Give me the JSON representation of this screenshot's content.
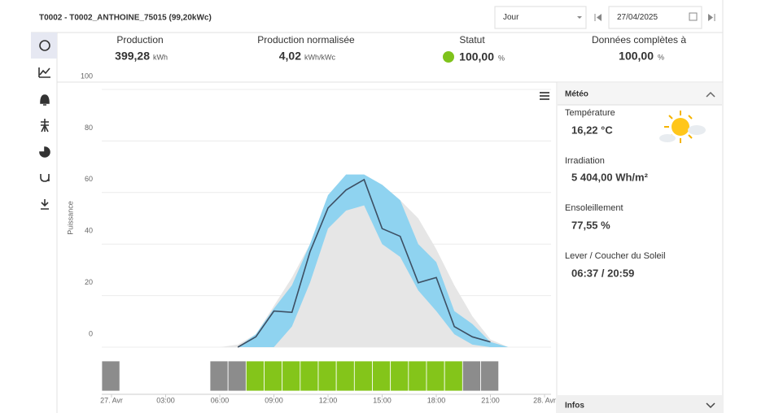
{
  "header": {
    "title": "T0002 - T0002_ANTHOINE_75015 (99,20kWc)",
    "period": "Jour",
    "date": "27/04/2025"
  },
  "kpis": [
    {
      "label": "Production",
      "value": "399,28",
      "unit": "kWh"
    },
    {
      "label": "Production normalisée",
      "value": "4,02",
      "unit": "kWh/kWc"
    },
    {
      "label": "Statut",
      "value": "100,00",
      "unit": "%",
      "status_color": "#7fc31c"
    },
    {
      "label": "Données complètes à",
      "value": "100,00",
      "unit": "%"
    }
  ],
  "chart_data": {
    "type": "line",
    "y_label": "Puissance",
    "xlim": [
      0,
      24
    ],
    "xticks": [
      {
        "value": 0,
        "label": "27. Avr"
      },
      {
        "value": 3,
        "label": "03:00"
      },
      {
        "value": 6,
        "label": "06:00"
      },
      {
        "value": 9,
        "label": "09:00"
      },
      {
        "value": 12,
        "label": "12:00"
      },
      {
        "value": 15,
        "label": "15:00"
      },
      {
        "value": 18,
        "label": "18:00"
      },
      {
        "value": 21,
        "label": "21:00"
      },
      {
        "value": 24,
        "label": "28. Avr"
      }
    ],
    "ylim": [
      0,
      100
    ],
    "yticks": [
      0,
      20,
      40,
      60,
      80,
      100
    ],
    "grid": true,
    "series": [
      {
        "kind": "area",
        "color": "#e6e6e6",
        "x": [
          6,
          7,
          8,
          9,
          10,
          11,
          12,
          13,
          14,
          15,
          16,
          17,
          18,
          19,
          20,
          21,
          22
        ],
        "values": [
          0,
          1,
          5,
          16,
          27,
          40,
          53,
          60,
          63,
          63,
          57,
          50,
          38,
          24,
          12,
          3,
          0
        ]
      },
      {
        "kind": "band",
        "color": "#8fd3f0",
        "x": [
          6,
          7,
          8,
          9,
          10,
          11,
          12,
          13,
          14,
          15,
          16,
          17,
          18,
          19,
          20,
          21,
          22
        ],
        "lower": [
          0,
          0,
          0,
          0,
          8,
          25,
          46,
          53,
          55,
          40,
          35,
          22,
          14,
          5,
          1,
          0,
          0
        ],
        "upper": [
          0,
          0,
          5,
          15,
          24,
          40,
          59,
          67,
          67,
          63,
          57,
          40,
          33,
          14,
          9,
          2,
          0
        ]
      },
      {
        "kind": "line",
        "color": "#3d4f63",
        "x": [
          7,
          8,
          9,
          10,
          11,
          12,
          13,
          14,
          15,
          16,
          17,
          18,
          19,
          20,
          21
        ],
        "values": [
          0,
          4,
          14,
          13.5,
          37,
          54,
          61,
          65,
          46,
          43,
          25,
          27,
          8,
          4,
          2
        ]
      }
    ],
    "timeline": [
      {
        "start": 0,
        "end": 1,
        "color": "#8c8c8c"
      },
      {
        "start": 6,
        "end": 7,
        "color": "#8c8c8c"
      },
      {
        "start": 7,
        "end": 8,
        "color": "#8c8c8c"
      },
      {
        "start": 8,
        "end": 9,
        "color": "#84c51a"
      },
      {
        "start": 9,
        "end": 10,
        "color": "#84c51a"
      },
      {
        "start": 10,
        "end": 11,
        "color": "#84c51a"
      },
      {
        "start": 11,
        "end": 12,
        "color": "#84c51a"
      },
      {
        "start": 12,
        "end": 13,
        "color": "#84c51a"
      },
      {
        "start": 13,
        "end": 14,
        "color": "#84c51a"
      },
      {
        "start": 14,
        "end": 15,
        "color": "#84c51a"
      },
      {
        "start": 15,
        "end": 16,
        "color": "#84c51a"
      },
      {
        "start": 16,
        "end": 17,
        "color": "#84c51a"
      },
      {
        "start": 17,
        "end": 18,
        "color": "#84c51a"
      },
      {
        "start": 18,
        "end": 19,
        "color": "#84c51a"
      },
      {
        "start": 19,
        "end": 20,
        "color": "#84c51a"
      },
      {
        "start": 20,
        "end": 21,
        "color": "#8c8c8c"
      },
      {
        "start": 21,
        "end": 22,
        "color": "#8c8c8c"
      }
    ]
  },
  "weather": {
    "title": "Météo",
    "items": [
      {
        "label": "Température",
        "value": "16,22 °C"
      },
      {
        "label": "Irradiation",
        "value": "5 404,00 Wh/m²"
      },
      {
        "label": "Ensoleillement",
        "value": "77,55 %"
      },
      {
        "label": "Lever / Coucher du Soleil",
        "value": "06:37 / 20:59"
      }
    ],
    "footer": "Infos"
  }
}
